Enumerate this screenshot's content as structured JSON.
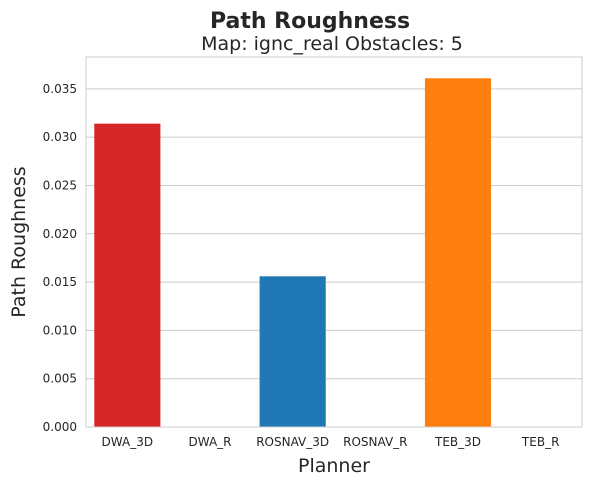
{
  "chart_data": {
    "type": "bar",
    "title": "Path Roughness",
    "subtitle": "Map: ignc_real Obstacles: 5",
    "xlabel": "Planner",
    "ylabel": "Path Roughness",
    "categories": [
      "DWA_3D",
      "DWA_R",
      "ROSNAV_3D",
      "ROSNAV_R",
      "TEB_3D",
      "TEB_R"
    ],
    "values": [
      0.0314,
      0,
      0.0156,
      0,
      0.0361,
      0
    ],
    "colors": [
      "#d62728",
      "#d62728",
      "#1f77b4",
      "#1f77b4",
      "#ff7f0e",
      "#ff7f0e"
    ],
    "ylim": [
      0,
      0.0383
    ],
    "yticks": [
      "0.000",
      "0.005",
      "0.010",
      "0.015",
      "0.020",
      "0.025",
      "0.030",
      "0.035"
    ],
    "grid": "horizontal",
    "legend": "none"
  }
}
